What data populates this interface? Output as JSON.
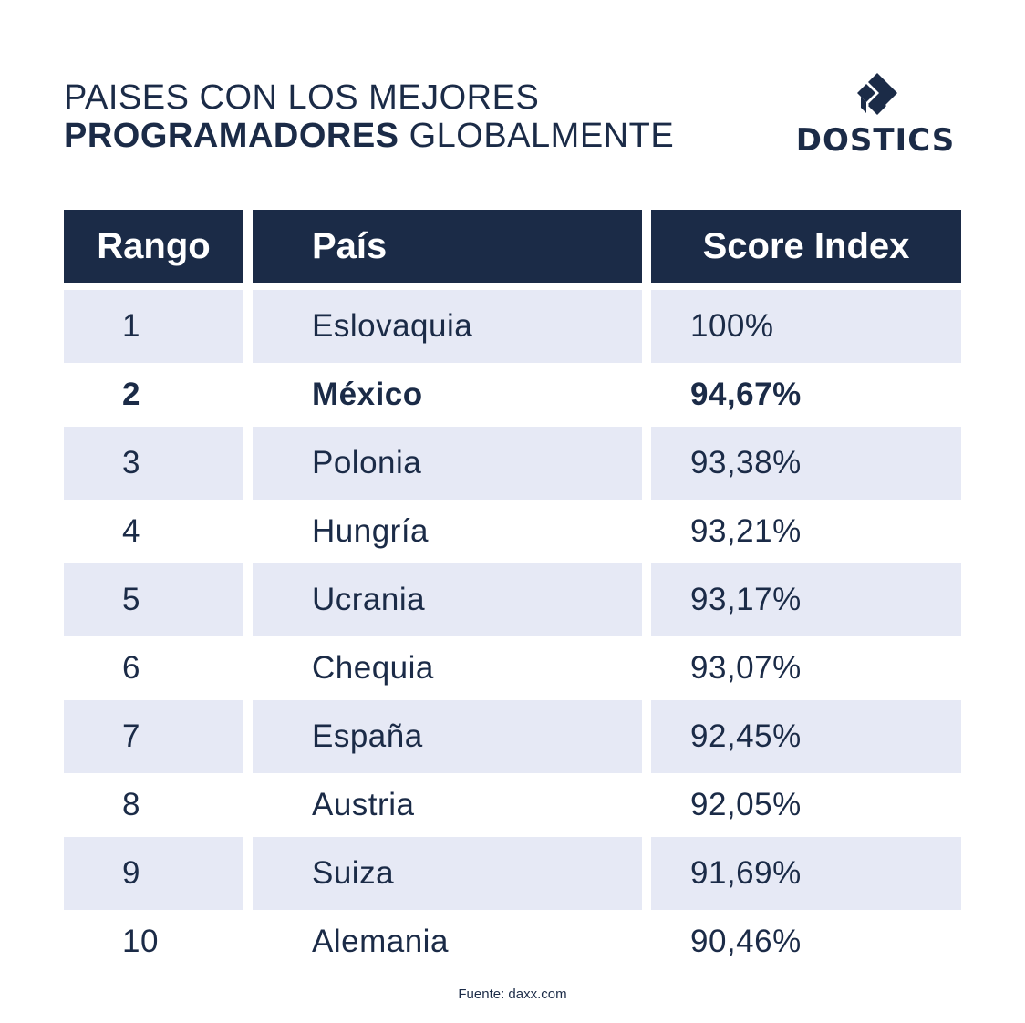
{
  "title": {
    "line1": "PAISES CON LOS MEJORES",
    "line2_bold": "PROGRAMADORES",
    "line2_rest": " GLOBALMENTE"
  },
  "logo": {
    "text": "DOSTICS",
    "icon": "stacked-diamonds-logo-icon"
  },
  "table": {
    "headers": [
      "Rango",
      "País",
      "Score Index"
    ],
    "rows": [
      {
        "rank": "1",
        "country": "Eslovaquia",
        "score": "100%"
      },
      {
        "rank": "2",
        "country": "México",
        "score": "94,67%"
      },
      {
        "rank": "3",
        "country": "Polonia",
        "score": "93,38%"
      },
      {
        "rank": "4",
        "country": "Hungría",
        "score": "93,21%"
      },
      {
        "rank": "5",
        "country": "Ucrania",
        "score": "93,17%"
      },
      {
        "rank": "6",
        "country": "Chequia",
        "score": "93,07%"
      },
      {
        "rank": "7",
        "country": "España",
        "score": "92,45%"
      },
      {
        "rank": "8",
        "country": "Austria",
        "score": "92,05%"
      },
      {
        "rank": "9",
        "country": "Suiza",
        "score": "91,69%"
      },
      {
        "rank": "10",
        "country": "Alemania",
        "score": "90,46%"
      }
    ]
  },
  "source": "Fuente: daxx.com",
  "colors": {
    "navy": "#1b2b47",
    "row_shade": "#e6e9f5"
  }
}
